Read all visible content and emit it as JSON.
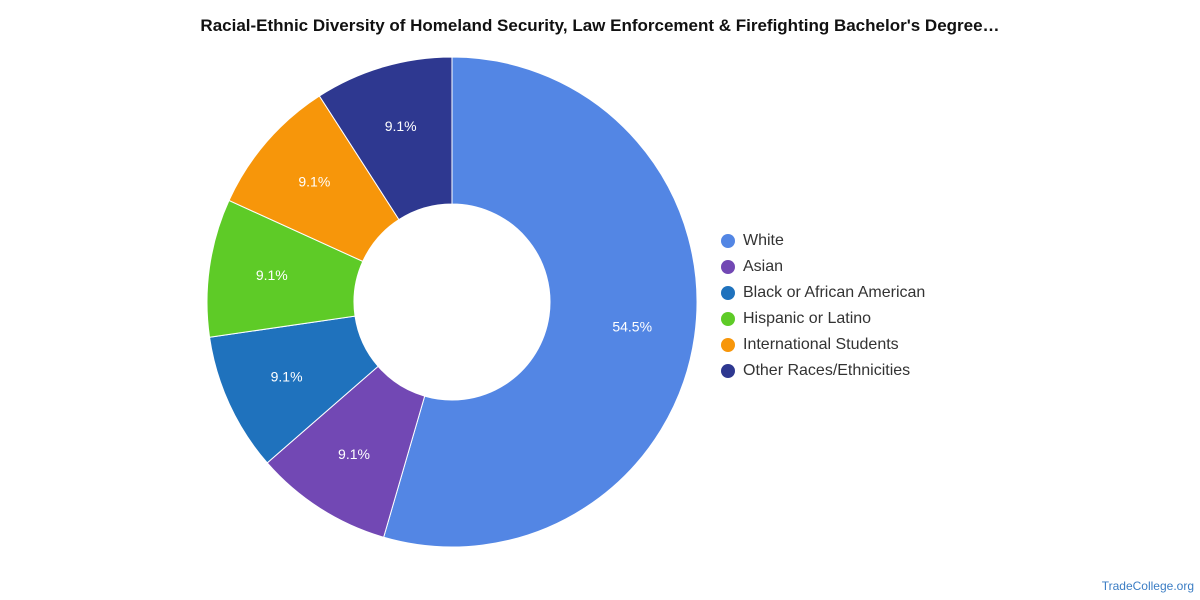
{
  "chart_data": {
    "type": "pie",
    "donut": true,
    "title": "Racial-Ethnic Diversity of Homeland Security, Law Enforcement & Firefighting Bachelor's Degree…",
    "legend_position": "right",
    "slices": [
      {
        "label": "White",
        "value": 54.5,
        "display": "54.5%",
        "color": "#5386e4"
      },
      {
        "label": "Asian",
        "value": 9.1,
        "display": "9.1%",
        "color": "#7248b4"
      },
      {
        "label": "Black or African American",
        "value": 9.1,
        "display": "9.1%",
        "color": "#1f72bd"
      },
      {
        "label": "Hispanic or Latino",
        "value": 9.1,
        "display": "9.1%",
        "color": "#5ecb27"
      },
      {
        "label": "International Students",
        "value": 9.1,
        "display": "9.1%",
        "color": "#f7960a"
      },
      {
        "label": "Other Races/Ethnicities",
        "value": 9.1,
        "display": "9.1%",
        "color": "#2e3890"
      }
    ]
  },
  "watermark": "TradeCollege.org"
}
